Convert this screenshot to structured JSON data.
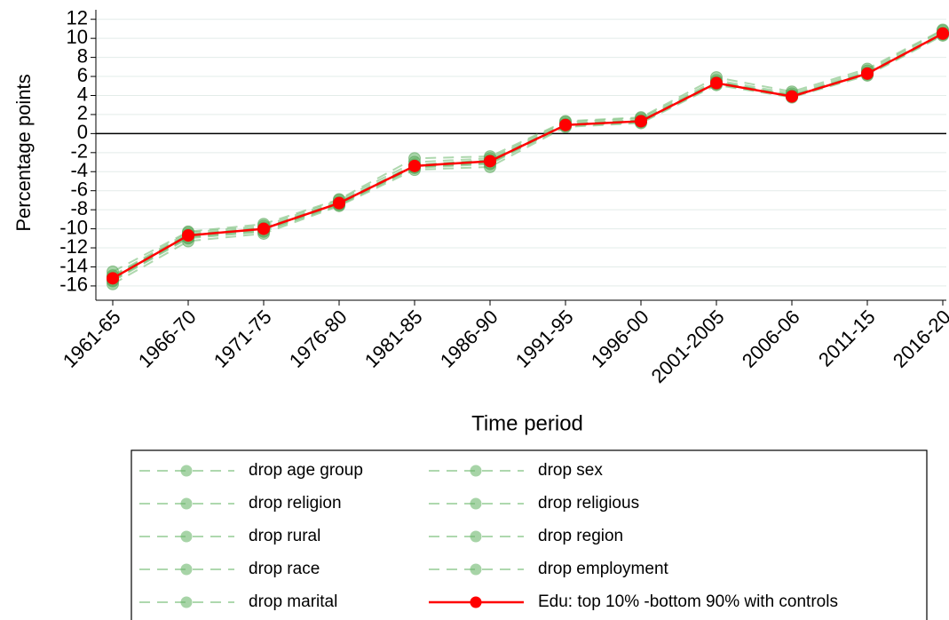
{
  "chart_data": {
    "type": "line",
    "x_label": "Time period",
    "y_label": "Percentage points",
    "categories": [
      "1961-65",
      "1966-70",
      "1971-75",
      "1976-80",
      "1981-85",
      "1986-90",
      "1991-95",
      "1996-00",
      "2001-2005",
      "2006-06",
      "2011-15",
      "2016-20"
    ],
    "series": [
      {
        "name": "drop age group",
        "color": "#6cb86c",
        "style": "dashed",
        "values": [
          -14.5,
          -10.3,
          -9.5,
          -6.9,
          -2.6,
          -2.4,
          1.3,
          1.7,
          5.9,
          4.4,
          6.8,
          10.9
        ]
      },
      {
        "name": "drop sex",
        "color": "#6cb86c",
        "style": "dashed",
        "values": [
          -15.0,
          -10.6,
          -9.9,
          -7.2,
          -3.3,
          -2.8,
          1.0,
          1.4,
          5.4,
          4.0,
          6.4,
          10.6
        ]
      },
      {
        "name": "drop religion",
        "color": "#6cb86c",
        "style": "dashed",
        "values": [
          -15.8,
          -11.3,
          -10.5,
          -7.6,
          -3.8,
          -3.5,
          0.7,
          1.1,
          5.1,
          3.8,
          6.1,
          10.3
        ]
      },
      {
        "name": "drop religious",
        "color": "#6cb86c",
        "style": "dashed",
        "values": [
          -15.3,
          -10.8,
          -10.1,
          -7.4,
          -3.5,
          -3.0,
          0.9,
          1.3,
          5.3,
          3.9,
          6.3,
          10.5
        ]
      },
      {
        "name": "drop rural",
        "color": "#6cb86c",
        "style": "dashed",
        "values": [
          -15.1,
          -10.6,
          -9.9,
          -7.2,
          -3.3,
          -2.8,
          1.0,
          1.4,
          5.4,
          4.0,
          6.4,
          10.5
        ]
      },
      {
        "name": "drop region",
        "color": "#6cb86c",
        "style": "dashed",
        "values": [
          -14.9,
          -10.4,
          -9.7,
          -7.0,
          -3.0,
          -2.6,
          1.2,
          1.6,
          5.6,
          4.2,
          6.6,
          10.8
        ]
      },
      {
        "name": "drop race",
        "color": "#6cb86c",
        "style": "dashed",
        "values": [
          -15.5,
          -11.0,
          -10.3,
          -7.5,
          -3.6,
          -3.2,
          0.8,
          1.2,
          5.2,
          3.9,
          6.2,
          10.4
        ]
      },
      {
        "name": "drop employment",
        "color": "#6cb86c",
        "style": "dashed",
        "values": [
          -15.2,
          -10.7,
          -10.0,
          -7.3,
          -3.4,
          -2.9,
          0.9,
          1.3,
          5.3,
          3.9,
          6.3,
          10.5
        ]
      },
      {
        "name": "drop marital",
        "color": "#6cb86c",
        "style": "dashed",
        "values": [
          -15.4,
          -10.9,
          -10.2,
          -7.4,
          -3.5,
          -3.1,
          0.9,
          1.3,
          5.4,
          4.0,
          6.3,
          10.5
        ]
      },
      {
        "name": "Edu: top 10% -bottom 90% with controls",
        "color": "#ff0000",
        "style": "solid",
        "values": [
          -15.2,
          -10.7,
          -10.0,
          -7.3,
          -3.4,
          -2.9,
          0.9,
          1.3,
          5.3,
          3.9,
          6.3,
          10.5
        ]
      }
    ],
    "ylim": [
      -17.5,
      13
    ],
    "yticks": [
      -16,
      -14,
      -12,
      -10,
      -8,
      -6,
      -4,
      -2,
      0,
      2,
      4,
      6,
      8,
      10,
      12
    ],
    "reference_line": 0,
    "grid": true,
    "legend_position": "bottom"
  }
}
